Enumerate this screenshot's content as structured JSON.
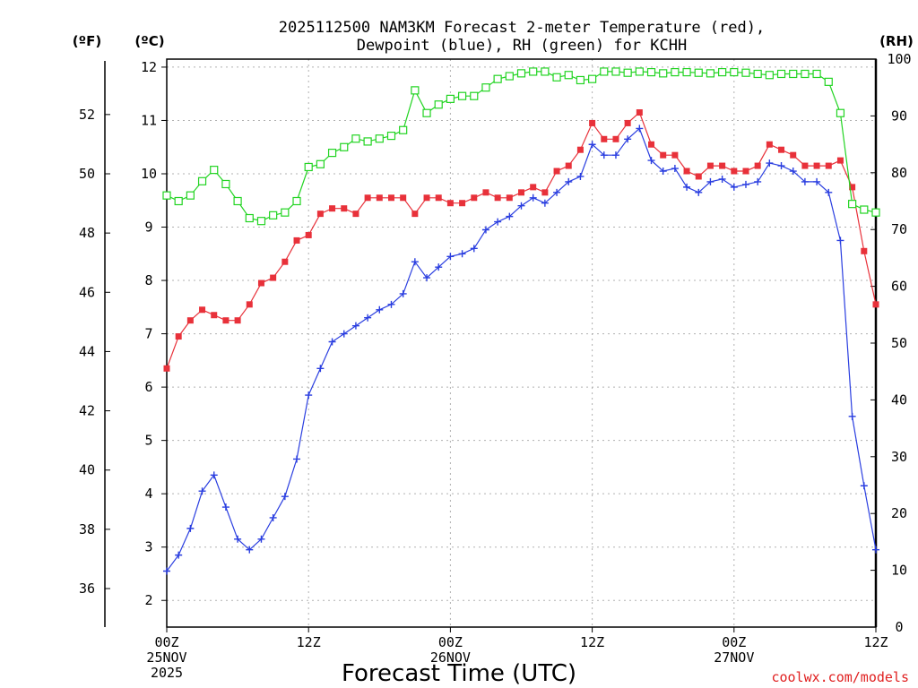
{
  "chart_data": {
    "type": "line",
    "title_lines": [
      "2025112500 NAM3KM Forecast 2-meter Temperature (red),",
      "Dewpoint (blue), RH (green) for KCHH"
    ],
    "xlabel": "Forecast Time (UTC)",
    "watermark": "coolwx.com/models",
    "units": {
      "fahrenheit": "(ºF)",
      "celsius": "(ºC)",
      "rh": "(RH)"
    },
    "x_range_hours": [
      0,
      60
    ],
    "x_ticks": [
      {
        "hour": 0,
        "lines": [
          "00Z",
          "25NOV",
          "2025"
        ]
      },
      {
        "hour": 12,
        "lines": [
          "12Z"
        ]
      },
      {
        "hour": 24,
        "lines": [
          "00Z",
          "26NOV"
        ]
      },
      {
        "hour": 36,
        "lines": [
          "12Z"
        ]
      },
      {
        "hour": 48,
        "lines": [
          "00Z",
          "27NOV"
        ]
      },
      {
        "hour": 60,
        "lines": [
          "12Z"
        ]
      }
    ],
    "celsius_axis": {
      "range": [
        1.5,
        12.15
      ],
      "ticks": [
        "2",
        "3",
        "4",
        "5",
        "6",
        "7",
        "8",
        "9",
        "10",
        "11",
        "12"
      ]
    },
    "fahrenheit_axis": {
      "range": [
        34.7,
        53.87
      ],
      "ticks": [
        "36",
        "38",
        "40",
        "42",
        "44",
        "46",
        "48",
        "50",
        "52"
      ]
    },
    "rh_axis": {
      "range": [
        0,
        100
      ],
      "ticks": [
        "0",
        "10",
        "20",
        "30",
        "40",
        "50",
        "60",
        "70",
        "80",
        "90",
        "100"
      ]
    },
    "grid": true,
    "series": [
      {
        "name": "Temperature",
        "units": "C",
        "color": "#e8313a",
        "marker": "filled-square",
        "axis": "celsius",
        "values": [
          6.35,
          6.95,
          7.25,
          7.45,
          7.35,
          7.25,
          7.25,
          7.55,
          7.95,
          8.05,
          8.35,
          8.75,
          8.85,
          9.25,
          9.35,
          9.35,
          9.25,
          9.55,
          9.55,
          9.55,
          9.55,
          9.25,
          9.55,
          9.55,
          9.45,
          9.45,
          9.55,
          9.65,
          9.55,
          9.55,
          9.65,
          9.75,
          9.65,
          10.05,
          10.15,
          10.45,
          10.95,
          10.65,
          10.65,
          10.95,
          11.15,
          10.55,
          10.35,
          10.35,
          10.05,
          9.95,
          10.15,
          10.15,
          10.05,
          10.05,
          10.15,
          10.55,
          10.45,
          10.35,
          10.15,
          10.15,
          10.15,
          10.25,
          9.75,
          8.55,
          7.55
        ]
      },
      {
        "name": "Dewpoint",
        "units": "C",
        "color": "#2a3ee0",
        "marker": "plus",
        "axis": "celsius",
        "values": [
          2.55,
          2.85,
          3.35,
          4.05,
          4.35,
          3.75,
          3.15,
          2.95,
          3.15,
          3.55,
          3.95,
          4.65,
          5.85,
          6.35,
          6.85,
          7.0,
          7.15,
          7.3,
          7.45,
          7.55,
          7.75,
          8.35,
          8.05,
          8.25,
          8.45,
          8.5,
          8.6,
          8.95,
          9.1,
          9.2,
          9.4,
          9.55,
          9.45,
          9.65,
          9.85,
          9.95,
          10.55,
          10.35,
          10.35,
          10.65,
          10.85,
          10.25,
          10.05,
          10.1,
          9.75,
          9.65,
          9.85,
          9.9,
          9.75,
          9.8,
          9.85,
          10.2,
          10.15,
          10.05,
          9.85,
          9.85,
          9.65,
          8.75,
          5.45,
          4.15,
          2.95
        ]
      },
      {
        "name": "RH",
        "units": "%",
        "color": "#22d422",
        "marker": "open-square",
        "axis": "rh",
        "values": [
          76,
          75,
          76,
          78.5,
          80.5,
          78,
          75,
          72,
          71.5,
          72.5,
          73,
          75,
          81,
          81.5,
          83.5,
          84.5,
          86,
          85.5,
          86,
          86.5,
          87.5,
          94.5,
          90.5,
          92,
          93,
          93.5,
          93.5,
          95,
          96.5,
          97,
          97.5,
          97.8,
          97.8,
          96.8,
          97.2,
          96.3,
          96.5,
          97.8,
          97.8,
          97.6,
          97.8,
          97.7,
          97.5,
          97.7,
          97.7,
          97.6,
          97.5,
          97.7,
          97.7,
          97.6,
          97.4,
          97.2,
          97.4,
          97.4,
          97.4,
          97.4,
          96,
          90.5,
          74.5,
          73.5,
          73
        ]
      }
    ]
  }
}
